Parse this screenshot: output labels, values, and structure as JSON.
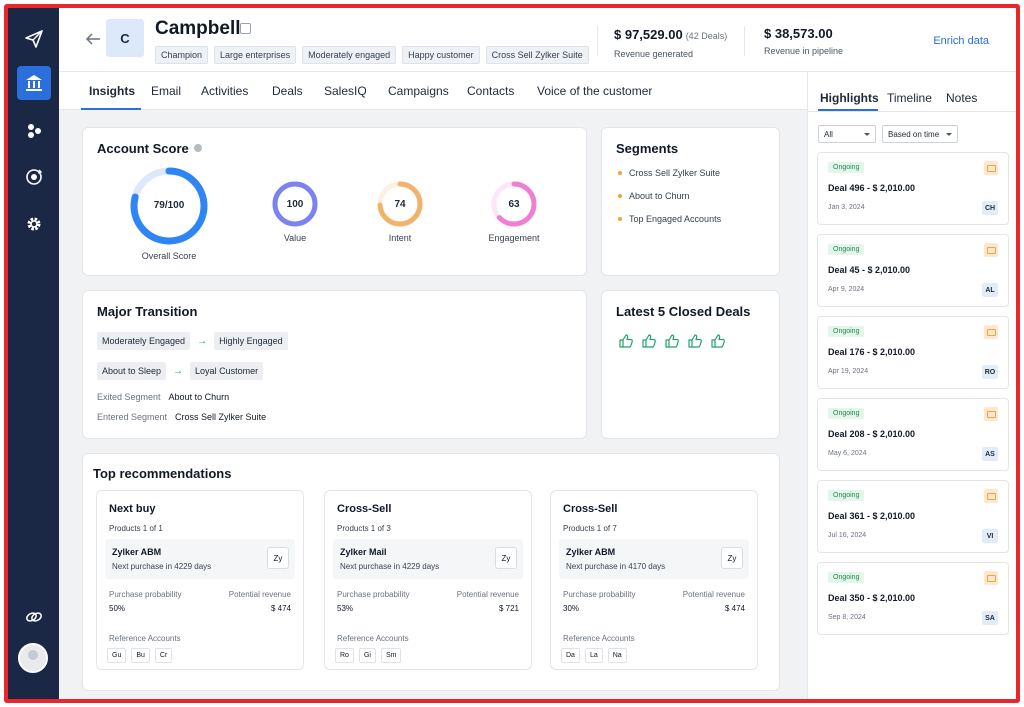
{
  "account": {
    "initial": "C",
    "name": "Campbell",
    "tags": [
      "Champion",
      "Large enterprises",
      "Moderately engaged",
      "Happy customer",
      "Cross Sell Zylker Suite"
    ]
  },
  "metrics": {
    "revenue_generated": {
      "value": "$ 97,529.00",
      "sub": "(42 Deals)",
      "label": "Revenue generated"
    },
    "revenue_pipeline": {
      "value": "$ 38,573.00",
      "label": "Revenue in pipeline"
    }
  },
  "enrich_label": "Enrich data",
  "tabs": [
    "Insights",
    "Email",
    "Activities",
    "Deals",
    "SalesIQ",
    "Campaigns",
    "Contacts",
    "Voice of the customer"
  ],
  "active_tab": "Insights",
  "account_score": {
    "title": "Account Score",
    "overall": {
      "label": "79/100",
      "caption": "Overall Score",
      "fraction": 0.79,
      "color": "#2e86f5"
    },
    "value": {
      "label": "100",
      "caption": "Value",
      "fraction": 1.0,
      "color": "#7b83f0"
    },
    "intent": {
      "label": "74",
      "caption": "Intent",
      "fraction": 0.74,
      "color": "#f3b26a"
    },
    "engagement": {
      "label": "63",
      "caption": "Engagement",
      "fraction": 0.63,
      "color": "#f07fd4"
    }
  },
  "segments": {
    "title": "Segments",
    "items": [
      "Cross Sell Zylker Suite",
      "About to Churn",
      "Top Engaged Accounts"
    ]
  },
  "major_transition": {
    "title": "Major Transition",
    "rows": [
      {
        "from": "Moderately Engaged",
        "to": "Highly Engaged"
      },
      {
        "from": "About to Sleep",
        "to": "Loyal Customer"
      }
    ],
    "exited_label": "Exited Segment",
    "exited_value": "About to Churn",
    "entered_label": "Entered Segment",
    "entered_value": "Cross Sell Zylker Suite"
  },
  "closed_deals": {
    "title": "Latest 5 Closed Deals",
    "count": 5
  },
  "recommendations": {
    "title": "Top recommendations",
    "cards": [
      {
        "type": "Next buy",
        "products": "Products 1 of 1",
        "product": "Zylker ABM",
        "next": "Next purchase in 4229 days",
        "logo": "Zy",
        "prob_label": "Purchase probability",
        "prob": "50%",
        "rev_label": "Potential revenue",
        "rev": "$ 474",
        "ref_label": "Reference Accounts",
        "refs": [
          "Gu",
          "Bu",
          "Cr"
        ]
      },
      {
        "type": "Cross-Sell",
        "products": "Products 1 of 3",
        "product": "Zylker Mail",
        "next": "Next purchase in 4229 days",
        "logo": "Zy",
        "prob_label": "Purchase probability",
        "prob": "53%",
        "rev_label": "Potential revenue",
        "rev": "$ 721",
        "ref_label": "Reference Accounts",
        "refs": [
          "Ro",
          "Gi",
          "Sm"
        ]
      },
      {
        "type": "Cross-Sell",
        "products": "Products 1 of 7",
        "product": "Zylker ABM",
        "next": "Next purchase in 4170 days",
        "logo": "Zy",
        "prob_label": "Purchase probability",
        "prob": "30%",
        "rev_label": "Potential revenue",
        "rev": "$ 474",
        "ref_label": "Reference Accounts",
        "refs": [
          "Da",
          "La",
          "Na"
        ]
      }
    ]
  },
  "right_panel": {
    "tabs": [
      "Highlights",
      "Timeline",
      "Notes"
    ],
    "filter_all": "All",
    "filter_time": "Based on time",
    "deals": [
      {
        "status": "Ongoing",
        "title": "Deal 496 - $ 2,010.00",
        "date": "Jan 3, 2024",
        "initials": "CH"
      },
      {
        "status": "Ongoing",
        "title": "Deal 45 - $ 2,010.00",
        "date": "Apr 9, 2024",
        "initials": "AL"
      },
      {
        "status": "Ongoing",
        "title": "Deal 176 - $ 2,010.00",
        "date": "Apr 19, 2024",
        "initials": "RO"
      },
      {
        "status": "Ongoing",
        "title": "Deal 208 - $ 2,010.00",
        "date": "May 6, 2024",
        "initials": "AS"
      },
      {
        "status": "Ongoing",
        "title": "Deal 361 - $ 2,010.00",
        "date": "Jul 16, 2024",
        "initials": "VI"
      },
      {
        "status": "Ongoing",
        "title": "Deal 350 - $ 2,010.00",
        "date": "Sep 8, 2024",
        "initials": "SA"
      }
    ]
  },
  "colors": {
    "accent": "#2a6fdb",
    "rail": "#1a2745",
    "border_highlight": "#e8262b",
    "status_green": "#1e8a4f",
    "segment_dot": "#f2a33a"
  },
  "icons": {
    "rail": [
      "paper-plane-icon",
      "bank-icon",
      "cluster-icon",
      "refresh-icon",
      "gear-icon",
      "link-icon"
    ]
  }
}
